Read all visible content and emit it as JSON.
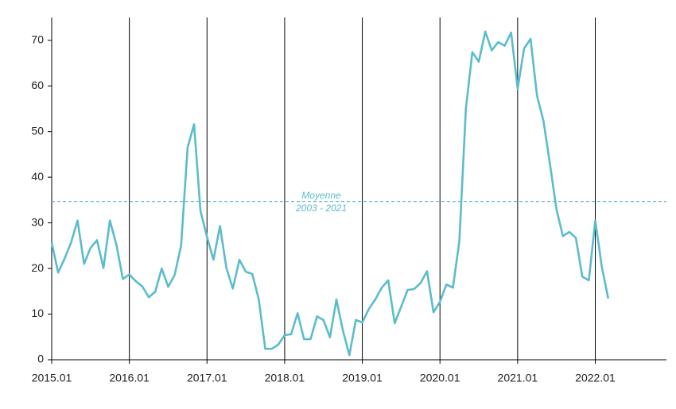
{
  "chart_data": {
    "type": "line",
    "x": [
      "2015.01",
      "2015.02",
      "2015.03",
      "2015.04",
      "2015.05",
      "2015.06",
      "2015.07",
      "2015.08",
      "2015.09",
      "2015.10",
      "2015.11",
      "2015.12",
      "2016.01",
      "2016.02",
      "2016.03",
      "2016.04",
      "2016.05",
      "2016.06",
      "2016.07",
      "2016.08",
      "2016.09",
      "2016.10",
      "2016.11",
      "2016.12",
      "2017.01",
      "2017.02",
      "2017.03",
      "2017.04",
      "2017.05",
      "2017.06",
      "2017.07",
      "2017.08",
      "2017.09",
      "2017.10",
      "2017.11",
      "2017.12",
      "2018.01",
      "2018.02",
      "2018.03",
      "2018.04",
      "2018.05",
      "2018.06",
      "2018.07",
      "2018.08",
      "2018.09",
      "2018.10",
      "2018.11",
      "2018.12",
      "2019.01",
      "2019.02",
      "2019.03",
      "2019.04",
      "2019.05",
      "2019.06",
      "2019.07",
      "2019.08",
      "2019.09",
      "2019.10",
      "2019.11",
      "2019.12",
      "2020.01",
      "2020.02",
      "2020.03",
      "2020.04",
      "2020.05",
      "2020.06",
      "2020.07",
      "2020.08",
      "2020.09",
      "2020.10",
      "2020.11",
      "2020.12",
      "2021.01",
      "2021.02",
      "2021.03",
      "2021.04",
      "2021.05",
      "2021.06",
      "2021.07",
      "2021.08",
      "2021.09",
      "2021.10",
      "2021.11",
      "2021.12",
      "2022.01",
      "2022.02",
      "2022.03"
    ],
    "series": [
      {
        "color": "#5bbccc",
        "values": [
          25.7,
          19.1,
          22.2,
          25.7,
          30.5,
          21,
          24.5,
          26.2,
          20.1,
          30.5,
          25.2,
          17.7,
          18.7,
          17.2,
          16.1,
          13.7,
          14.9,
          20,
          16,
          18.6,
          25,
          46.5,
          51.6,
          32.6,
          26.9,
          21.9,
          29.3,
          20.1,
          15.6,
          21.9,
          19.3,
          18.8,
          13.2,
          2.4,
          2.4,
          3.3,
          5.4,
          5.6,
          10.2,
          4.5,
          4.5,
          9.5,
          8.7,
          4.9,
          13.2,
          6.4,
          1,
          8.7,
          8.2,
          11.1,
          13.2,
          15.8,
          17.4,
          8,
          11.6,
          15.3,
          15.5,
          16.8,
          19.4,
          10.4,
          12.7,
          16.5,
          15.8,
          26,
          55,
          67.4,
          65.3,
          71.9,
          67.8,
          69.6,
          68.8,
          71.7,
          59.4,
          68.2,
          70.3,
          57.8,
          52.3,
          42.9,
          33,
          27.1,
          28,
          26.7,
          18.2,
          17.4,
          30.5,
          20.5,
          13.4
        ]
      }
    ],
    "xlim": [
      "2015.01",
      "2022.12"
    ],
    "xticks": [
      "2015.01",
      "2016.01",
      "2017.01",
      "2018.01",
      "2019.01",
      "2020.01",
      "2021.01",
      "2022.01"
    ],
    "ylim": [
      0,
      75
    ],
    "yticks": [
      0,
      10,
      20,
      30,
      40,
      50,
      60,
      70
    ],
    "xgrid": true,
    "reference_line": {
      "value": 34.7,
      "label": [
        "Moyenne",
        "2003 - 2021"
      ]
    }
  }
}
